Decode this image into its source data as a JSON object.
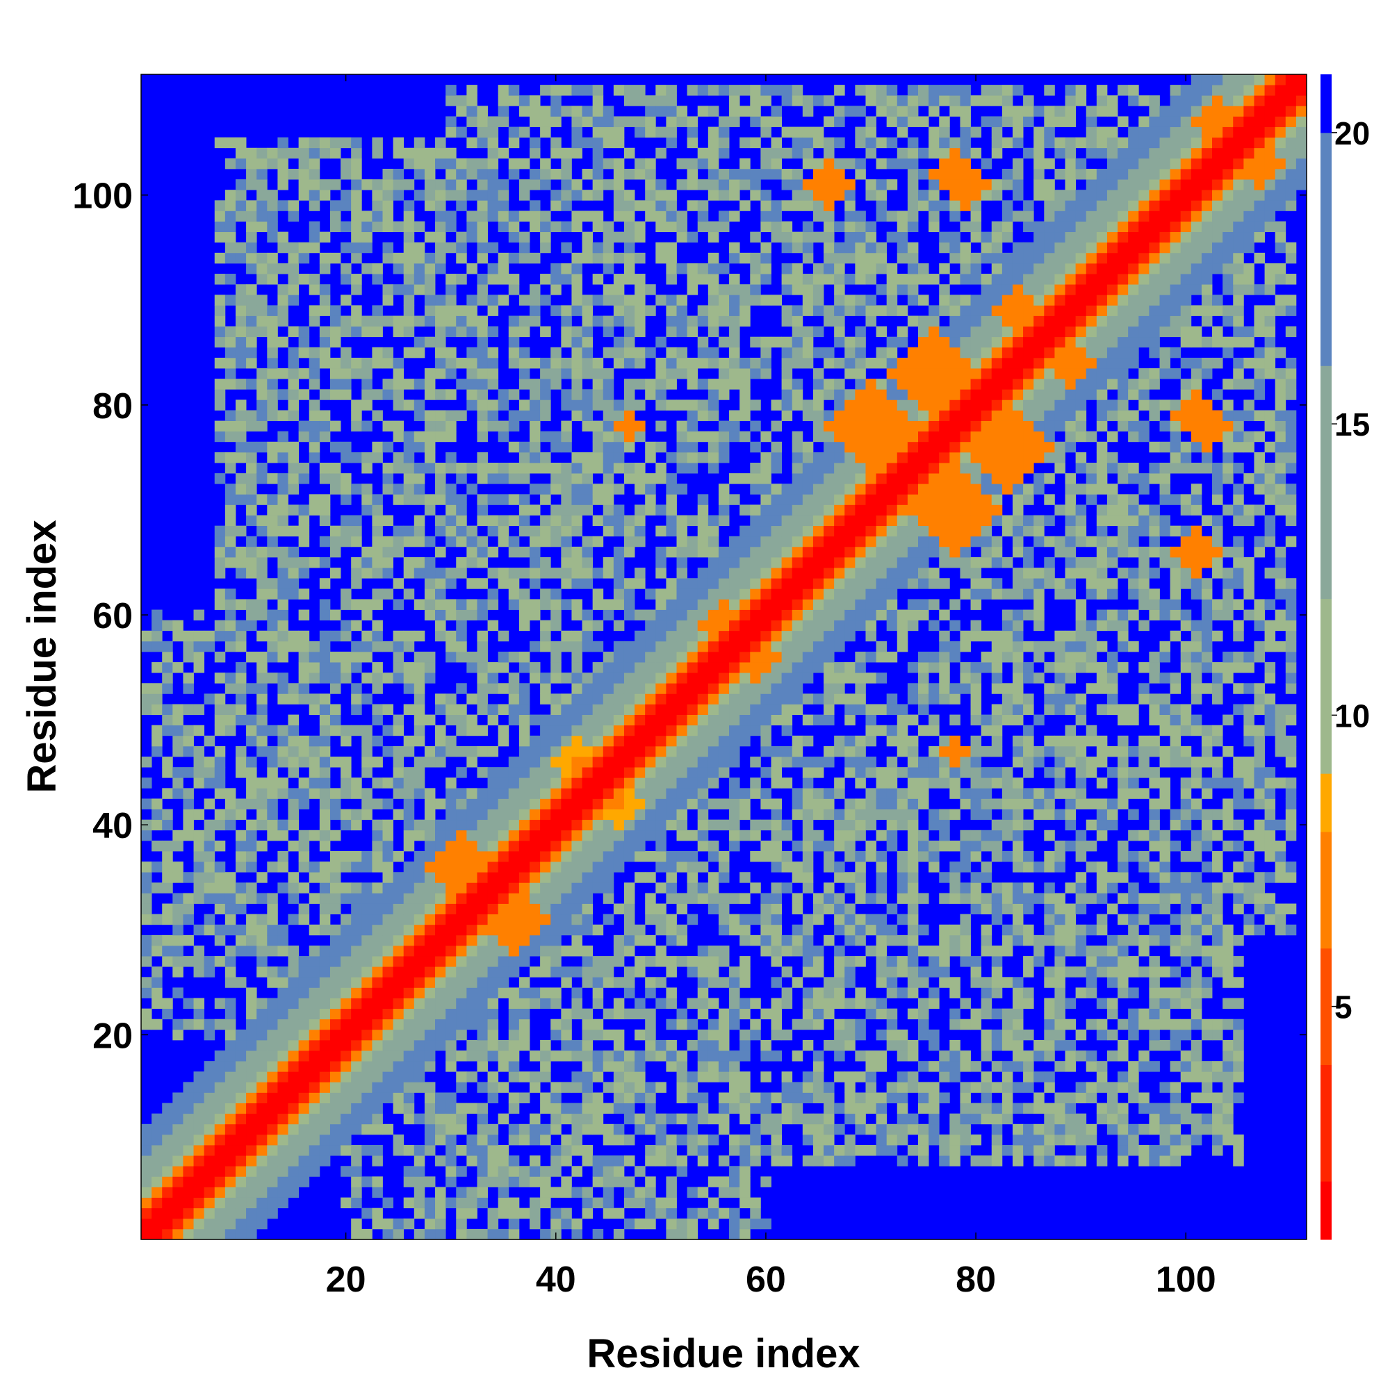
{
  "chart_data": {
    "type": "heatmap",
    "title": "",
    "xlabel": "Residue index",
    "ylabel": "Residue index",
    "n_residues": 111,
    "xlim": [
      0.5,
      111.5
    ],
    "ylim": [
      0.5,
      111.5
    ],
    "x_ticks": [
      20,
      40,
      60,
      80,
      100
    ],
    "y_ticks": [
      20,
      40,
      60,
      80,
      100
    ],
    "colorbar": {
      "range": [
        1,
        21
      ],
      "ticks": [
        5,
        10,
        15,
        20
      ],
      "levels": [
        {
          "from": 0,
          "to": 2,
          "color": "#ff0000"
        },
        {
          "from": 2,
          "to": 4,
          "color": "#ff2600"
        },
        {
          "from": 4,
          "to": 6,
          "color": "#ff5000"
        },
        {
          "from": 6,
          "to": 8,
          "color": "#ff8000"
        },
        {
          "from": 8,
          "to": 9,
          "color": "#ffa800"
        },
        {
          "from": 9,
          "to": 12,
          "color": "#9eb88c"
        },
        {
          "from": 12,
          "to": 16,
          "color": "#8aa89a"
        },
        {
          "from": 16,
          "to": 20,
          "color": "#5b84bf"
        },
        {
          "from": 20,
          "to": 22,
          "color": "#0000ff"
        }
      ]
    },
    "grid": false,
    "legend": "colorbar-right",
    "features": {
      "diagonal_bands": [
        {
          "max_offset": 1,
          "value": 1.5
        },
        {
          "max_offset": 2,
          "value": 3.5
        },
        {
          "max_offset": 3,
          "value": 6.5
        },
        {
          "max_offset": 4,
          "value": 10
        },
        {
          "max_offset": 7,
          "value": 14
        },
        {
          "max_offset": 10,
          "value": 18
        }
      ],
      "contact_blobs": [
        {
          "i": 31,
          "j": 36,
          "radius": 3,
          "value": 7
        },
        {
          "i": 42,
          "j": 46,
          "radius": 2,
          "value": 8
        },
        {
          "i": 70,
          "j": 78,
          "radius": 4,
          "value": 7
        },
        {
          "i": 76,
          "j": 83,
          "radius": 4,
          "value": 7
        },
        {
          "i": 84,
          "j": 89,
          "radius": 2,
          "value": 7
        },
        {
          "i": 66,
          "j": 101,
          "radius": 2,
          "value": 7
        },
        {
          "i": 79,
          "j": 101,
          "radius": 2,
          "value": 7
        },
        {
          "i": 78,
          "j": 102,
          "radius": 2,
          "value": 7
        },
        {
          "i": 103,
          "j": 107,
          "radius": 2,
          "value": 7
        },
        {
          "i": 56,
          "j": 59,
          "radius": 2,
          "value": 7
        },
        {
          "i": 47,
          "j": 78,
          "radius": 1,
          "value": 7
        }
      ],
      "medium_regions": [
        {
          "i0": 20,
          "i1": 60,
          "j0": 1,
          "j1": 40,
          "value": 13
        },
        {
          "i0": 25,
          "i1": 65,
          "j0": 40,
          "j1": 70,
          "value": 14
        },
        {
          "i0": 40,
          "i1": 80,
          "j0": 35,
          "j1": 80,
          "value": 15
        },
        {
          "i0": 55,
          "i1": 110,
          "j0": 60,
          "j1": 110,
          "value": 15
        },
        {
          "i0": 8,
          "i1": 55,
          "j0": 60,
          "j1": 105,
          "value": 16
        },
        {
          "i0": 60,
          "i1": 80,
          "j0": 20,
          "j1": 55,
          "value": 15
        },
        {
          "i0": 95,
          "i1": 110,
          "j0": 30,
          "j1": 85,
          "value": 15
        }
      ],
      "background_value": 21
    }
  }
}
